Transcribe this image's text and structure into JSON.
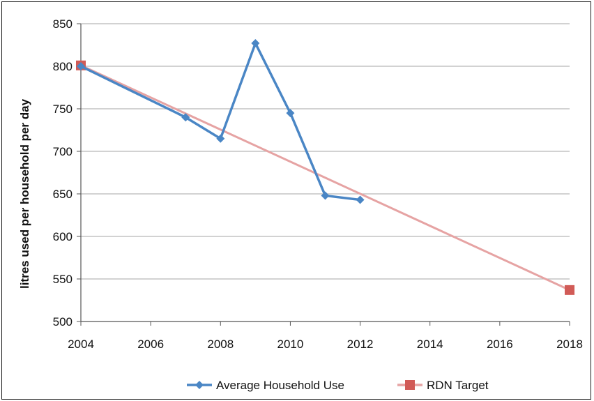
{
  "chart_data": {
    "type": "line",
    "title": "",
    "xlabel": "",
    "ylabel": "litres used per household per day",
    "xlim": [
      2004,
      2018
    ],
    "ylim": [
      500,
      850
    ],
    "xticks": [
      2004,
      2006,
      2008,
      2010,
      2012,
      2014,
      2016,
      2018
    ],
    "yticks": [
      500,
      550,
      600,
      650,
      700,
      750,
      800,
      850
    ],
    "grid": "horizontal",
    "legend_position": "bottom",
    "series": [
      {
        "name": "Average Household Use",
        "color": "#4a86c5",
        "marker": "diamond",
        "points": [
          {
            "x": 2004,
            "y": 800
          },
          {
            "x": 2007,
            "y": 740
          },
          {
            "x": 2008,
            "y": 715
          },
          {
            "x": 2009,
            "y": 827
          },
          {
            "x": 2010,
            "y": 745
          },
          {
            "x": 2011,
            "y": 648
          },
          {
            "x": 2012,
            "y": 643
          }
        ]
      },
      {
        "name": "RDN Target",
        "color": "#d15b57",
        "line_color": "#e6a3a3",
        "marker": "square",
        "points": [
          {
            "x": 2004,
            "y": 801
          },
          {
            "x": 2018,
            "y": 537
          }
        ]
      }
    ]
  }
}
